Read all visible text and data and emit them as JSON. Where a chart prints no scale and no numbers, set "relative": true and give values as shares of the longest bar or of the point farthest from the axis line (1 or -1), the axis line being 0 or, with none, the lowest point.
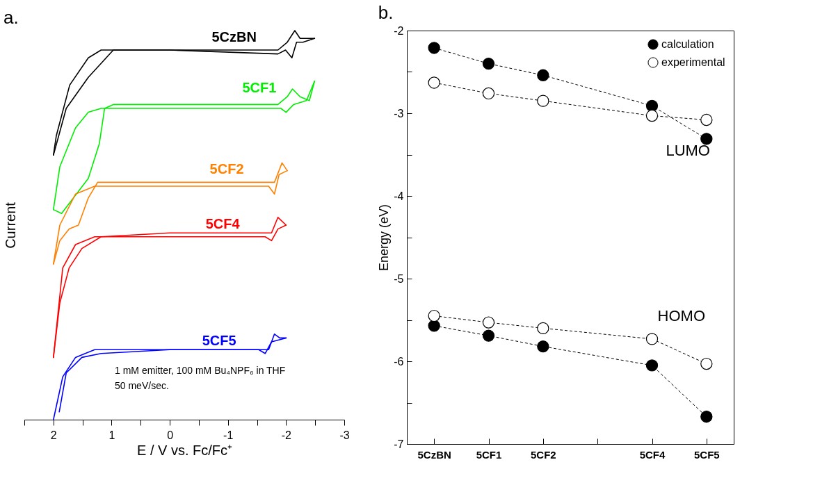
{
  "chart_data": [
    {
      "type": "line",
      "title": "a.",
      "xlabel": "E / V vs. Fc/Fc⁺",
      "ylabel": "Current",
      "relative": true,
      "xlim": [
        2.5,
        -3
      ],
      "xticks": [
        {
          "value": 2.5,
          "label": null
        },
        2,
        {
          "value": 1.5,
          "label": null
        },
        1,
        {
          "value": 0.5,
          "label": null
        },
        0,
        {
          "value": -0.5,
          "label": null
        },
        -1,
        {
          "value": -1.5,
          "label": null
        },
        -2,
        {
          "value": -2.5,
          "label": null
        },
        -3
      ],
      "series": [
        {
          "name": "5CzBN",
          "color": "#000000",
          "x": [
            2.0,
            1.78,
            1.4,
            0.97,
            0,
            -1.86,
            -2.02,
            -2.15,
            -2.24,
            -2.35,
            -2.49
          ],
          "values": [
            0.68,
            0.8,
            0.88,
            0.95,
            0.95,
            0.95,
            0.97,
            1.0,
            0.98,
            0.98,
            0.98
          ]
        },
        {
          "color": "#000000",
          "x": [
            -2.49,
            -2.29,
            -2.18,
            -2.1,
            -1.99,
            -1.86,
            0,
            1.18,
            1.4,
            1.72,
            1.95,
            2.0
          ],
          "values": [
            0.98,
            0.97,
            0.97,
            0.93,
            0.95,
            0.94,
            0.95,
            0.95,
            0.93,
            0.86,
            0.73,
            0.68
          ]
        },
        {
          "name": "5CF1",
          "color": "#00ee00",
          "x": [
            2.0,
            1.86,
            1.4,
            1.21,
            1.12,
            0.97,
            0,
            -1.86,
            -2.02,
            -2.11,
            -2.24,
            -2.4,
            -2.49
          ],
          "values": [
            0.54,
            0.53,
            0.62,
            0.71,
            0.8,
            0.81,
            0.81,
            0.81,
            0.83,
            0.85,
            0.83,
            0.82,
            0.87
          ]
        },
        {
          "color": "#00ee00",
          "x": [
            -2.49,
            -2.35,
            -2.13,
            -2.0,
            -1.91,
            0,
            1.18,
            1.4,
            1.62,
            1.89,
            2.0
          ],
          "values": [
            0.87,
            0.82,
            0.81,
            0.79,
            0.8,
            0.8,
            0.8,
            0.79,
            0.75,
            0.65,
            0.54
          ]
        },
        {
          "name": "5CF2",
          "color": "#ff8000",
          "x": [
            2.0,
            1.89,
            1.73,
            1.57,
            1.4,
            1.24,
            0.97,
            0,
            -1.8,
            -1.93,
            -2.02
          ],
          "values": [
            0.4,
            0.46,
            0.49,
            0.5,
            0.57,
            0.61,
            0.61,
            0.61,
            0.61,
            0.66,
            0.64
          ]
        },
        {
          "color": "#ff8000",
          "x": [
            -2.02,
            -1.88,
            -1.8,
            -1.7,
            0,
            1.29,
            1.62,
            1.89,
            2.0
          ],
          "values": [
            0.64,
            0.63,
            0.58,
            0.6,
            0.6,
            0.6,
            0.58,
            0.5,
            0.4
          ]
        },
        {
          "name": "5CF4",
          "color": "#ff0000",
          "x": [
            2.0,
            1.89,
            1.73,
            1.51,
            1.18,
            0,
            -1.75,
            -1.86,
            -2.0
          ],
          "values": [
            0.16,
            0.3,
            0.39,
            0.44,
            0.47,
            0.48,
            0.48,
            0.52,
            0.5
          ]
        },
        {
          "color": "#ff0000",
          "x": [
            -2.0,
            -1.86,
            -1.75,
            -1.64,
            0,
            1.29,
            1.62,
            1.84,
            2.0
          ],
          "values": [
            0.5,
            0.49,
            0.46,
            0.47,
            0.47,
            0.47,
            0.45,
            0.39,
            0.16
          ]
        },
        {
          "name": "5CF5",
          "color": "#0000ff",
          "x": [
            2.0,
            1.84,
            1.62,
            1.29,
            0,
            -1.7,
            -1.8,
            -1.89,
            -2.0
          ],
          "values": [
            0,
            0.11,
            0.16,
            0.18,
            0.18,
            0.18,
            0.22,
            0.21,
            0.21
          ]
        },
        {
          "color": "#0000ff",
          "x": [
            -2.0,
            -1.75,
            -1.64,
            -1.53,
            0,
            1.18,
            1.51,
            1.78,
            1.9
          ],
          "values": [
            0.21,
            0.2,
            0.17,
            0.18,
            0.18,
            0.17,
            0.16,
            0.12,
            0.02
          ]
        }
      ],
      "annotations": [
        "1 mM emitter, 100 mM Bu₄NPF₆ in THF",
        "50 meV/sec."
      ]
    },
    {
      "type": "line",
      "title": "b.",
      "ylabel": "Energy (eV)",
      "categories": [
        "5CzBN",
        "5CF1",
        "5CF2",
        null,
        "5CF4",
        "5CF5"
      ],
      "ylim": [
        -7,
        -2
      ],
      "yticks": [
        -7,
        {
          "value": -6.5,
          "label": null
        },
        -6,
        {
          "value": -5.5,
          "label": null
        },
        -5,
        {
          "value": -4.5,
          "label": null
        },
        -4,
        {
          "value": -3.5,
          "label": null
        },
        -3,
        {
          "value": -2.5,
          "label": null
        },
        -2
      ],
      "marker": "circle",
      "line_style": "dashed",
      "legend": "top right",
      "grid": false,
      "series": [
        {
          "name": "calculation",
          "color": "#000000",
          "values": [
            -2.21,
            -2.4,
            -2.54,
            null,
            -2.91,
            -3.31
          ]
        },
        {
          "name": "experimental",
          "color": "#ffffff",
          "values": [
            -2.63,
            -2.76,
            -2.85,
            null,
            -3.03,
            -3.08
          ]
        },
        {
          "color": "#000000",
          "values": [
            -5.57,
            -5.69,
            -5.82,
            null,
            -6.05,
            -6.67
          ]
        },
        {
          "color": "#ffffff",
          "values": [
            -5.45,
            -5.53,
            -5.6,
            null,
            -5.73,
            -6.03
          ]
        }
      ],
      "annotations": [
        "LUMO",
        "HOMO"
      ]
    }
  ]
}
